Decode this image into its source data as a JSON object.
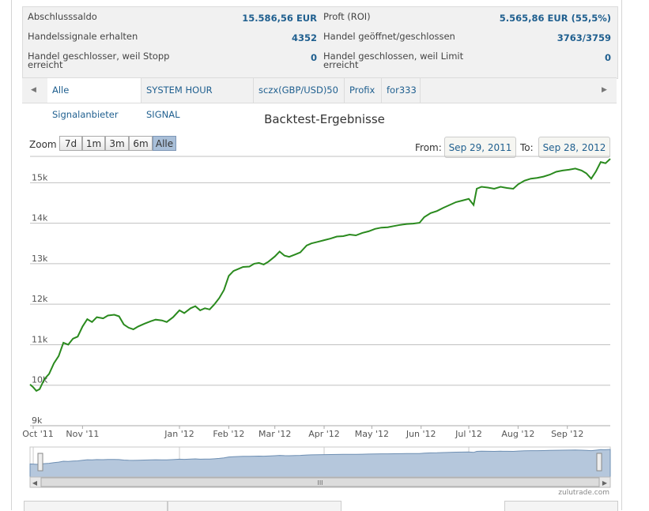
{
  "stats": [
    {
      "label": "Abschlusssaldo",
      "value": "15.586,56 EUR"
    },
    {
      "label": "Proft (ROI)",
      "value": "5.565,86 EUR (55,5%)"
    },
    {
      "label": "Handelssignale erhalten",
      "value": "4352"
    },
    {
      "label": "Handel geöffnet/geschlossen",
      "value": "3763/3759"
    },
    {
      "label": "Handel geschlosser, weil Stopp erreicht",
      "value": "0"
    },
    {
      "label": "Handel geschlossen, weil Limit erreicht",
      "value": "0"
    }
  ],
  "tabs": [
    "Alle Signalanbieter",
    "SYSTEM HOUR SIGNAL",
    "sczx(GBP/USD)50",
    "Profix",
    "for333"
  ],
  "active_tab": 0,
  "zoom": {
    "label": "Zoom",
    "options": [
      "7d",
      "1m",
      "3m",
      "6m",
      "Alle"
    ],
    "selected": "Alle"
  },
  "range": {
    "from_label": "From:",
    "from": "Sep 29, 2011",
    "to_label": "To:",
    "to": "Sep 28, 2012"
  },
  "navigator": {
    "labels": [
      "Oct '11",
      "Jan '12",
      "Apr '12",
      "Jul '12"
    ],
    "scroll_glyph": "III"
  },
  "credit": "zulutrade.com",
  "chart_data": {
    "type": "line",
    "title": "Backtest-Ergebnisse",
    "xlabel": "",
    "ylabel": "",
    "x_ticks": [
      "Oct '11",
      "Nov '11",
      "Jan '12",
      "Feb '12",
      "Mar '12",
      "Apr '12",
      "May '12",
      "Jun '12",
      "Jul '12",
      "Aug '12",
      "Sep '12"
    ],
    "y_ticks": [
      "9k",
      "10k",
      "11k",
      "12k",
      "13k",
      "14k",
      "15k"
    ],
    "ylim": [
      9000,
      15650
    ],
    "xlim": [
      "2011-09-29",
      "2012-09-28"
    ],
    "grid": true,
    "series": [
      {
        "color": "#2a8a1e",
        "points": [
          [
            "2011-09-29",
            10020
          ],
          [
            "2011-10-01",
            9950
          ],
          [
            "2011-10-03",
            9860
          ],
          [
            "2011-10-05",
            9900
          ],
          [
            "2011-10-08",
            10150
          ],
          [
            "2011-10-11",
            10280
          ],
          [
            "2011-10-14",
            10540
          ],
          [
            "2011-10-17",
            10720
          ],
          [
            "2011-10-20",
            11050
          ],
          [
            "2011-10-23",
            11000
          ],
          [
            "2011-10-26",
            11150
          ],
          [
            "2011-10-29",
            11200
          ],
          [
            "2011-11-01",
            11450
          ],
          [
            "2011-11-04",
            11630
          ],
          [
            "2011-11-07",
            11560
          ],
          [
            "2011-11-10",
            11680
          ],
          [
            "2011-11-14",
            11650
          ],
          [
            "2011-11-17",
            11720
          ],
          [
            "2011-11-21",
            11740
          ],
          [
            "2011-11-24",
            11700
          ],
          [
            "2011-11-27",
            11500
          ],
          [
            "2011-11-30",
            11420
          ],
          [
            "2011-12-03",
            11380
          ],
          [
            "2011-12-06",
            11450
          ],
          [
            "2011-12-10",
            11520
          ],
          [
            "2011-12-14",
            11580
          ],
          [
            "2011-12-17",
            11620
          ],
          [
            "2011-12-21",
            11600
          ],
          [
            "2011-12-24",
            11560
          ],
          [
            "2011-12-28",
            11680
          ],
          [
            "2012-01-01",
            11850
          ],
          [
            "2012-01-04",
            11780
          ],
          [
            "2012-01-08",
            11900
          ],
          [
            "2012-01-11",
            11950
          ],
          [
            "2012-01-14",
            11850
          ],
          [
            "2012-01-17",
            11900
          ],
          [
            "2012-01-20",
            11870
          ],
          [
            "2012-01-23",
            12000
          ],
          [
            "2012-01-26",
            12150
          ],
          [
            "2012-01-29",
            12350
          ],
          [
            "2012-02-01",
            12700
          ],
          [
            "2012-02-04",
            12820
          ],
          [
            "2012-02-07",
            12870
          ],
          [
            "2012-02-10",
            12920
          ],
          [
            "2012-02-14",
            12930
          ],
          [
            "2012-02-17",
            13000
          ],
          [
            "2012-02-20",
            13020
          ],
          [
            "2012-02-23",
            12980
          ],
          [
            "2012-02-26",
            13050
          ],
          [
            "2012-03-01",
            13180
          ],
          [
            "2012-03-04",
            13300
          ],
          [
            "2012-03-07",
            13200
          ],
          [
            "2012-03-10",
            13170
          ],
          [
            "2012-03-14",
            13230
          ],
          [
            "2012-03-17",
            13280
          ],
          [
            "2012-03-21",
            13450
          ],
          [
            "2012-03-24",
            13500
          ],
          [
            "2012-03-28",
            13540
          ],
          [
            "2012-04-01",
            13580
          ],
          [
            "2012-04-05",
            13620
          ],
          [
            "2012-04-09",
            13670
          ],
          [
            "2012-04-13",
            13680
          ],
          [
            "2012-04-17",
            13720
          ],
          [
            "2012-04-21",
            13700
          ],
          [
            "2012-04-25",
            13760
          ],
          [
            "2012-04-29",
            13800
          ],
          [
            "2012-05-03",
            13860
          ],
          [
            "2012-05-07",
            13890
          ],
          [
            "2012-05-11",
            13900
          ],
          [
            "2012-05-15",
            13930
          ],
          [
            "2012-05-19",
            13960
          ],
          [
            "2012-05-23",
            13980
          ],
          [
            "2012-05-27",
            13990
          ],
          [
            "2012-05-31",
            14010
          ],
          [
            "2012-06-03",
            14150
          ],
          [
            "2012-06-07",
            14250
          ],
          [
            "2012-06-11",
            14300
          ],
          [
            "2012-06-15",
            14380
          ],
          [
            "2012-06-19",
            14450
          ],
          [
            "2012-06-23",
            14520
          ],
          [
            "2012-06-27",
            14560
          ],
          [
            "2012-07-01",
            14600
          ],
          [
            "2012-07-04",
            14450
          ],
          [
            "2012-07-06",
            14850
          ],
          [
            "2012-07-09",
            14900
          ],
          [
            "2012-07-13",
            14880
          ],
          [
            "2012-07-17",
            14850
          ],
          [
            "2012-07-21",
            14900
          ],
          [
            "2012-07-25",
            14870
          ],
          [
            "2012-07-29",
            14850
          ],
          [
            "2012-08-01",
            14960
          ],
          [
            "2012-08-05",
            15050
          ],
          [
            "2012-08-09",
            15100
          ],
          [
            "2012-08-13",
            15120
          ],
          [
            "2012-08-17",
            15150
          ],
          [
            "2012-08-21",
            15200
          ],
          [
            "2012-08-25",
            15270
          ],
          [
            "2012-08-29",
            15300
          ],
          [
            "2012-09-02",
            15320
          ],
          [
            "2012-09-06",
            15350
          ],
          [
            "2012-09-10",
            15300
          ],
          [
            "2012-09-13",
            15230
          ],
          [
            "2012-09-16",
            15100
          ],
          [
            "2012-09-19",
            15280
          ],
          [
            "2012-09-22",
            15510
          ],
          [
            "2012-09-25",
            15480
          ],
          [
            "2012-09-28",
            15590
          ]
        ]
      }
    ]
  }
}
